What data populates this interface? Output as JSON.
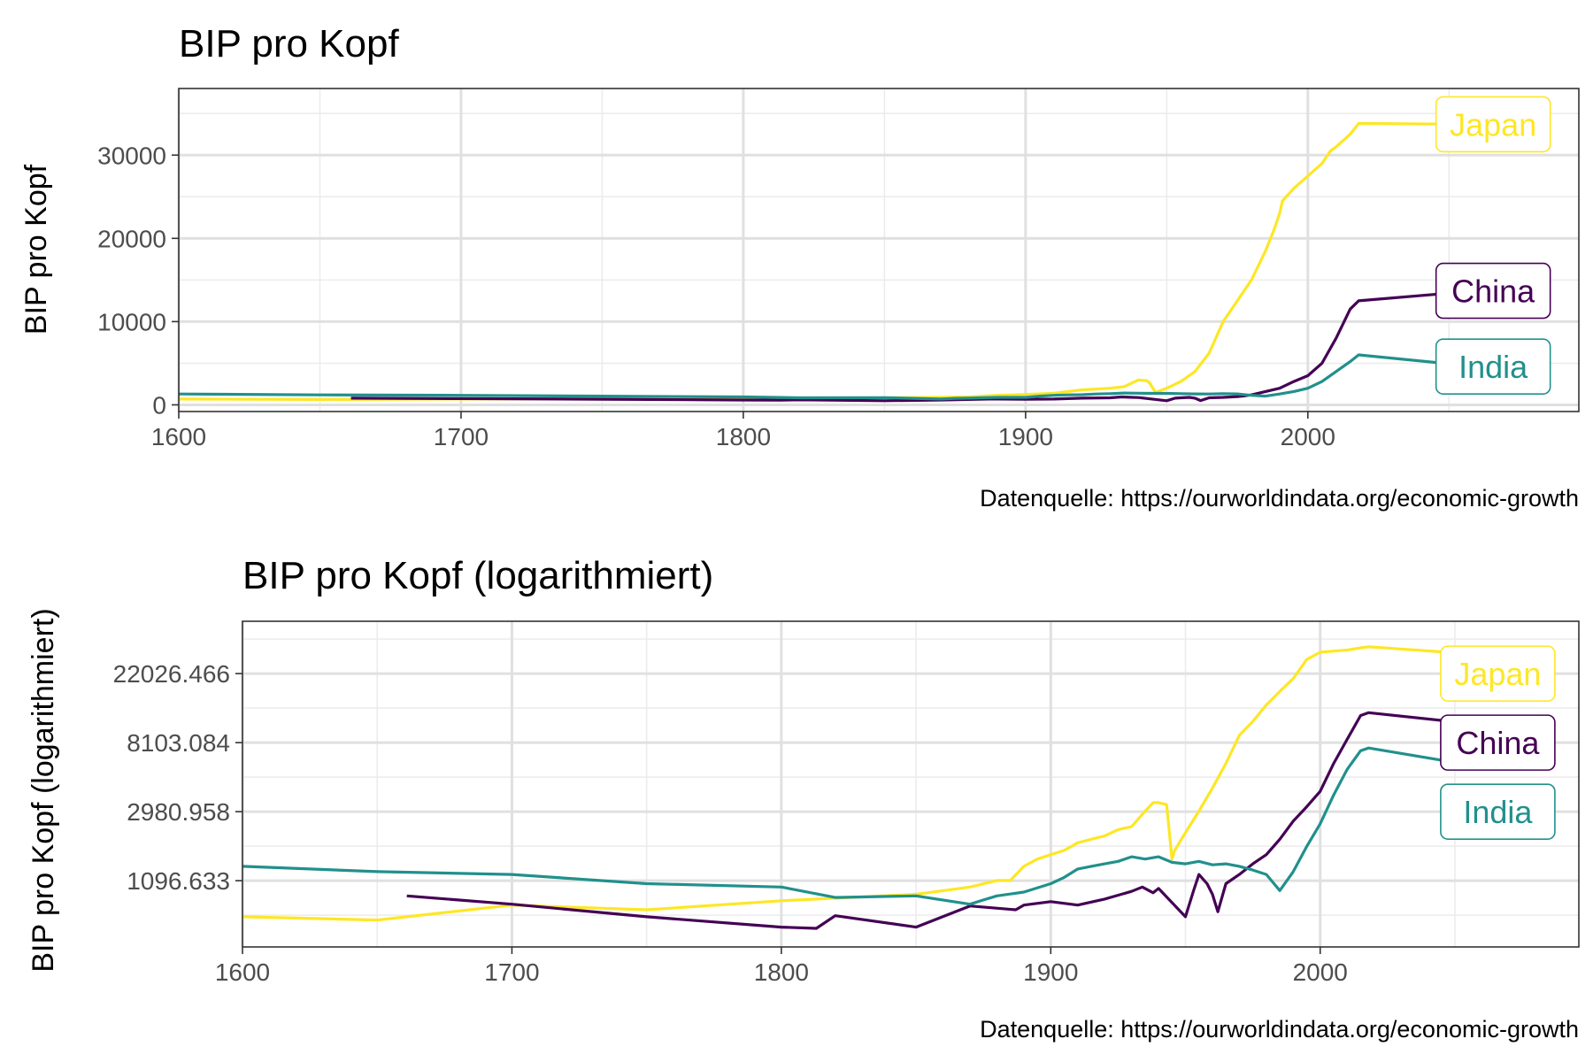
{
  "chart_data": [
    {
      "type": "line",
      "title": "BIP pro Kopf",
      "xlabel": "",
      "ylabel": "BIP pro Kopf",
      "caption": "Datenquelle: https://ourworldindata.org/economic-growth",
      "xlim": [
        1600,
        2096
      ],
      "ylim": [
        -800,
        38000
      ],
      "scale": "linear",
      "x_ticks": [
        "1600",
        "1700",
        "1800",
        "1900",
        "2000"
      ],
      "x_tick_values": [
        1600,
        1700,
        1800,
        1900,
        2000
      ],
      "y_ticks": [
        "0",
        "10000",
        "20000",
        "30000"
      ],
      "y_tick_values": [
        0,
        10000,
        20000,
        30000
      ],
      "grid": true,
      "colors": {
        "Japan": "#FDE725",
        "China": "#440154",
        "India": "#21908C"
      },
      "series": [
        {
          "name": "Japan",
          "label_value": 33700,
          "points": [
            [
              1600,
              700
            ],
            [
              1650,
              650
            ],
            [
              1700,
              700
            ],
            [
              1750,
              750
            ],
            [
              1800,
              800
            ],
            [
              1820,
              800
            ],
            [
              1850,
              850
            ],
            [
              1870,
              900
            ],
            [
              1880,
              950
            ],
            [
              1890,
              1150
            ],
            [
              1900,
              1250
            ],
            [
              1910,
              1400
            ],
            [
              1920,
              1800
            ],
            [
              1930,
              2000
            ],
            [
              1935,
              2200
            ],
            [
              1940,
              3000
            ],
            [
              1943,
              2900
            ],
            [
              1944,
              2600
            ],
            [
              1946,
              1500
            ],
            [
              1950,
              2000
            ],
            [
              1955,
              2800
            ],
            [
              1960,
              4000
            ],
            [
              1965,
              6200
            ],
            [
              1970,
              10000
            ],
            [
              1975,
              12500
            ],
            [
              1980,
              15000
            ],
            [
              1985,
              18500
            ],
            [
              1988,
              21000
            ],
            [
              1990,
              23000
            ],
            [
              1991,
              24500
            ],
            [
              1995,
              26000
            ],
            [
              2000,
              27500
            ],
            [
              2005,
              29000
            ],
            [
              2008,
              30500
            ],
            [
              2010,
              31000
            ],
            [
              2015,
              32500
            ],
            [
              2018,
              33800
            ],
            [
              2060,
              33700
            ]
          ]
        },
        {
          "name": "China",
          "label_value": 13700,
          "points": [
            [
              1661,
              800
            ],
            [
              1700,
              750
            ],
            [
              1750,
              680
            ],
            [
              1800,
              580
            ],
            [
              1813,
              560
            ],
            [
              1820,
              600
            ],
            [
              1850,
              500
            ],
            [
              1870,
              580
            ],
            [
              1887,
              700
            ],
            [
              1890,
              700
            ],
            [
              1900,
              680
            ],
            [
              1910,
              700
            ],
            [
              1920,
              800
            ],
            [
              1930,
              850
            ],
            [
              1934,
              950
            ],
            [
              1938,
              900
            ],
            [
              1940,
              880
            ],
            [
              1950,
              500
            ],
            [
              1953,
              800
            ],
            [
              1955,
              850
            ],
            [
              1958,
              900
            ],
            [
              1960,
              800
            ],
            [
              1962,
              520
            ],
            [
              1965,
              850
            ],
            [
              1970,
              900
            ],
            [
              1975,
              1000
            ],
            [
              1978,
              1100
            ],
            [
              1980,
              1200
            ],
            [
              1985,
              1600
            ],
            [
              1990,
              2000
            ],
            [
              1995,
              2800
            ],
            [
              2000,
              3500
            ],
            [
              2005,
              5000
            ],
            [
              2010,
              8000
            ],
            [
              2015,
              11500
            ],
            [
              2018,
              12500
            ],
            [
              2060,
              13700
            ]
          ]
        },
        {
          "name": "India",
          "label_value": 4600,
          "points": [
            [
              1600,
              1300
            ],
            [
              1650,
              1200
            ],
            [
              1700,
              1150
            ],
            [
              1750,
              1050
            ],
            [
              1800,
              950
            ],
            [
              1820,
              850
            ],
            [
              1850,
              870
            ],
            [
              1870,
              700
            ],
            [
              1875,
              780
            ],
            [
              1880,
              800
            ],
            [
              1890,
              900
            ],
            [
              1900,
              900
            ],
            [
              1905,
              1050
            ],
            [
              1910,
              1150
            ],
            [
              1915,
              1200
            ],
            [
              1920,
              1220
            ],
            [
              1925,
              1300
            ],
            [
              1930,
              1350
            ],
            [
              1935,
              1420
            ],
            [
              1940,
              1400
            ],
            [
              1945,
              1380
            ],
            [
              1950,
              1380
            ],
            [
              1955,
              1350
            ],
            [
              1960,
              1320
            ],
            [
              1965,
              1300
            ],
            [
              1970,
              1350
            ],
            [
              1975,
              1320
            ],
            [
              1980,
              1150
            ],
            [
              1985,
              1050
            ],
            [
              1990,
              1300
            ],
            [
              1995,
              1600
            ],
            [
              2000,
              2000
            ],
            [
              2005,
              2800
            ],
            [
              2010,
              4000
            ],
            [
              2015,
              5200
            ],
            [
              2018,
              6000
            ],
            [
              2060,
              4600
            ]
          ]
        }
      ]
    },
    {
      "type": "line",
      "title": "BIP pro Kopf (logarithmiert)",
      "xlabel": "",
      "ylabel": "BIP pro Kopf (logarithmiert)",
      "caption": "Datenquelle: https://ourworldindata.org/economic-growth",
      "xlim": [
        1600,
        2096
      ],
      "ylim": [
        420,
        47000
      ],
      "scale": "log",
      "x_ticks": [
        "1600",
        "1700",
        "1800",
        "1900",
        "2000"
      ],
      "x_tick_values": [
        1600,
        1700,
        1800,
        1900,
        2000
      ],
      "y_ticks": [
        "1096.633",
        "2980.958",
        "8103.084",
        "22026.466"
      ],
      "y_tick_values": [
        1096.633,
        2980.958,
        8103.084,
        22026.466
      ],
      "grid": true,
      "colors": {
        "Japan": "#FDE725",
        "China": "#440154",
        "India": "#21908C"
      },
      "series": [
        {
          "name": "Japan",
          "label_value": 22026,
          "points": [
            [
              1600,
              650
            ],
            [
              1650,
              620
            ],
            [
              1700,
              770
            ],
            [
              1750,
              720
            ],
            [
              1800,
              820
            ],
            [
              1850,
              900
            ],
            [
              1870,
              1000
            ],
            [
              1880,
              1100
            ],
            [
              1885,
              1100
            ],
            [
              1890,
              1350
            ],
            [
              1895,
              1500
            ],
            [
              1900,
              1600
            ],
            [
              1905,
              1700
            ],
            [
              1910,
              1900
            ],
            [
              1915,
              2000
            ],
            [
              1920,
              2100
            ],
            [
              1925,
              2300
            ],
            [
              1930,
              2400
            ],
            [
              1935,
              3000
            ],
            [
              1938,
              3400
            ],
            [
              1940,
              3400
            ],
            [
              1943,
              3300
            ],
            [
              1945,
              1500
            ],
            [
              1946,
              1700
            ],
            [
              1950,
              2200
            ],
            [
              1955,
              3000
            ],
            [
              1960,
              4200
            ],
            [
              1965,
              6000
            ],
            [
              1970,
              9000
            ],
            [
              1975,
              11000
            ],
            [
              1980,
              14000
            ],
            [
              1985,
              17000
            ],
            [
              1990,
              20500
            ],
            [
              1995,
              27000
            ],
            [
              2000,
              30000
            ],
            [
              2005,
              30500
            ],
            [
              2010,
              31000
            ],
            [
              2015,
              32000
            ],
            [
              2018,
              32500
            ],
            [
              2060,
              29000
            ]
          ]
        },
        {
          "name": "China",
          "label_value": 8103,
          "points": [
            [
              1661,
              880
            ],
            [
              1700,
              780
            ],
            [
              1750,
              650
            ],
            [
              1800,
              560
            ],
            [
              1813,
              550
            ],
            [
              1820,
              660
            ],
            [
              1850,
              560
            ],
            [
              1870,
              760
            ],
            [
              1887,
              720
            ],
            [
              1890,
              770
            ],
            [
              1900,
              810
            ],
            [
              1910,
              770
            ],
            [
              1920,
              840
            ],
            [
              1930,
              940
            ],
            [
              1934,
              1000
            ],
            [
              1938,
              920
            ],
            [
              1940,
              980
            ],
            [
              1950,
              650
            ],
            [
              1953,
              950
            ],
            [
              1955,
              1200
            ],
            [
              1958,
              1050
            ],
            [
              1960,
              900
            ],
            [
              1962,
              700
            ],
            [
              1965,
              1050
            ],
            [
              1970,
              1200
            ],
            [
              1975,
              1400
            ],
            [
              1980,
              1600
            ],
            [
              1985,
              2000
            ],
            [
              1990,
              2600
            ],
            [
              1995,
              3200
            ],
            [
              2000,
              4000
            ],
            [
              2005,
              6000
            ],
            [
              2010,
              8500
            ],
            [
              2015,
              12000
            ],
            [
              2018,
              12500
            ],
            [
              2060,
              10500
            ]
          ]
        },
        {
          "name": "India",
          "label_value": 2980,
          "points": [
            [
              1600,
              1350
            ],
            [
              1650,
              1250
            ],
            [
              1700,
              1200
            ],
            [
              1750,
              1050
            ],
            [
              1800,
              1000
            ],
            [
              1820,
              860
            ],
            [
              1850,
              880
            ],
            [
              1870,
              780
            ],
            [
              1875,
              830
            ],
            [
              1880,
              880
            ],
            [
              1890,
              930
            ],
            [
              1900,
              1050
            ],
            [
              1905,
              1150
            ],
            [
              1910,
              1300
            ],
            [
              1915,
              1350
            ],
            [
              1920,
              1400
            ],
            [
              1925,
              1450
            ],
            [
              1930,
              1550
            ],
            [
              1935,
              1500
            ],
            [
              1940,
              1550
            ],
            [
              1945,
              1430
            ],
            [
              1950,
              1400
            ],
            [
              1955,
              1450
            ],
            [
              1960,
              1380
            ],
            [
              1965,
              1400
            ],
            [
              1970,
              1350
            ],
            [
              1975,
              1280
            ],
            [
              1980,
              1200
            ],
            [
              1985,
              950
            ],
            [
              1990,
              1250
            ],
            [
              1995,
              1800
            ],
            [
              2000,
              2500
            ],
            [
              2005,
              3800
            ],
            [
              2010,
              5500
            ],
            [
              2015,
              7200
            ],
            [
              2018,
              7500
            ],
            [
              2060,
              5700
            ]
          ]
        }
      ]
    }
  ]
}
